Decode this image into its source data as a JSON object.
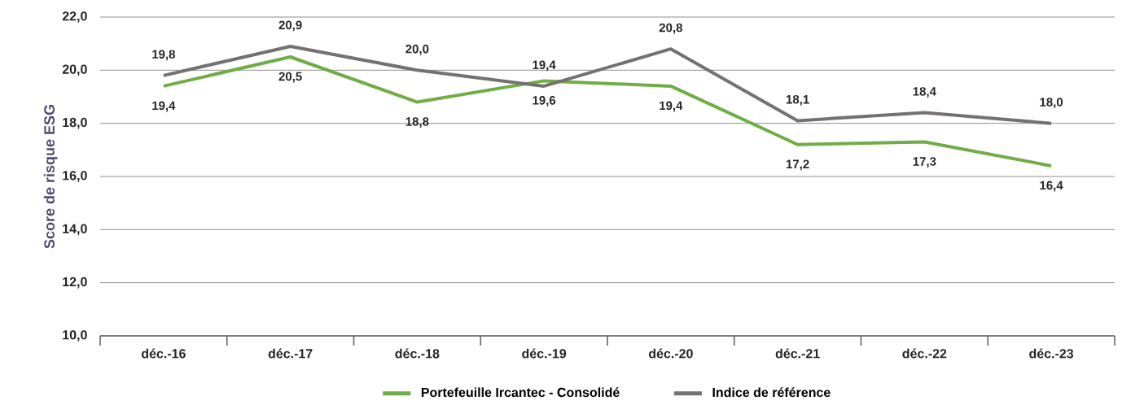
{
  "chart_data": {
    "type": "line",
    "ylabel": "Score de risque ESG",
    "categories": [
      "déc.-16",
      "déc.-17",
      "déc.-18",
      "déc.-19",
      "déc.-20",
      "déc.-21",
      "déc.-22",
      "déc.-23"
    ],
    "series": [
      {
        "name": "Portefeuille Ircantec - Consolidé",
        "color": "#70ad47",
        "values": [
          19.4,
          20.5,
          18.8,
          19.6,
          19.4,
          17.2,
          17.3,
          16.4
        ],
        "value_labels": [
          "19,4",
          "20,5",
          "18,8",
          "19,6",
          "19,4",
          "17,2",
          "17,3",
          "16,4"
        ]
      },
      {
        "name": "Indice de référence",
        "color": "#767171",
        "values": [
          19.8,
          20.9,
          20.0,
          19.4,
          20.8,
          18.1,
          18.4,
          18.0
        ],
        "value_labels": [
          "19,8",
          "20,9",
          "20,0",
          "19,4",
          "20,8",
          "18,1",
          "18,4",
          "18,0"
        ]
      }
    ],
    "ylim": [
      10,
      22
    ],
    "yticks": [
      {
        "value": 10,
        "label": "10,0"
      },
      {
        "value": 12,
        "label": "12,0"
      },
      {
        "value": 14,
        "label": "14,0"
      },
      {
        "value": 16,
        "label": "16,0"
      },
      {
        "value": 18,
        "label": "18,0"
      },
      {
        "value": 20,
        "label": "20,0"
      },
      {
        "value": 22,
        "label": "22,0"
      }
    ],
    "grid": "y",
    "legend": "bottom",
    "marker": "none",
    "line_style": "solid"
  }
}
